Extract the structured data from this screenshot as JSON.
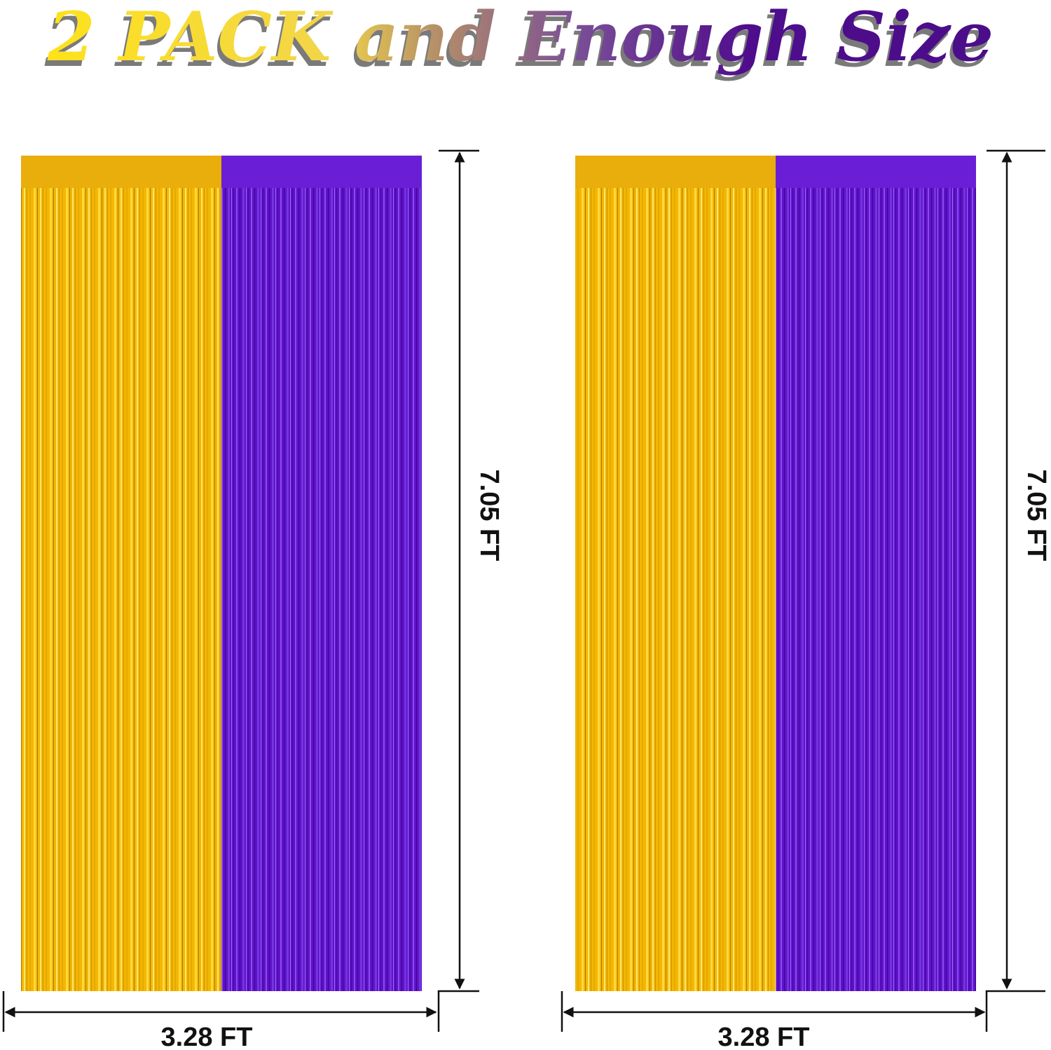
{
  "title": "2 PACK and Enough Size",
  "colors": {
    "gold": "#f2b705",
    "purple": "#5e12c9",
    "title_start": "#fde21c",
    "title_end": "#4c0a8a",
    "shadow": "#7a7a7a"
  },
  "curtains": [
    {
      "height_label": "7.05 FT",
      "width_label": "3.28 FT",
      "panels": [
        "gold",
        "purple"
      ]
    },
    {
      "height_label": "7.05 FT",
      "width_label": "3.28 FT",
      "panels": [
        "gold",
        "purple"
      ]
    }
  ]
}
